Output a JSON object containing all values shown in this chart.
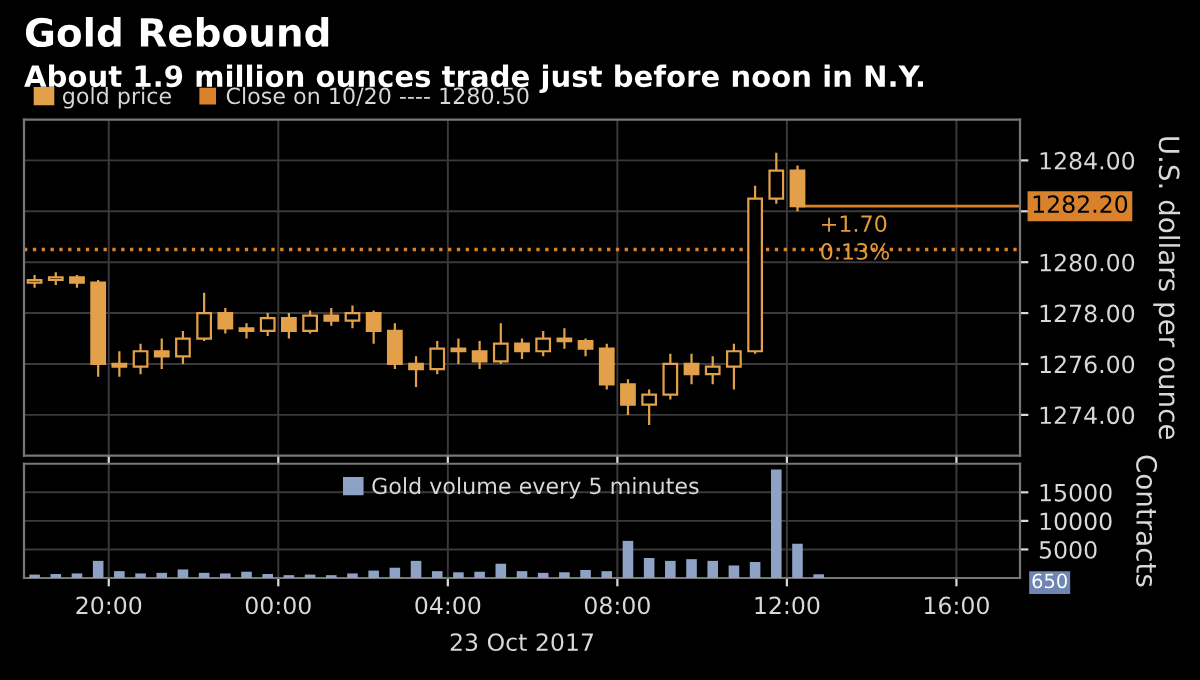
{
  "chart_data": [
    {
      "type": "candlestick",
      "title": "Gold Rebound",
      "subtitle": "About 1.9 million ounces trade just before noon in N.Y.",
      "ylabel": "U.S. dollars per ounce",
      "x": [
        "2017-10-22T18:15",
        "2017-10-22T18:45",
        "2017-10-22T19:15",
        "2017-10-22T19:45",
        "2017-10-22T20:15",
        "2017-10-22T20:45",
        "2017-10-22T21:15",
        "2017-10-22T21:45",
        "2017-10-22T22:15",
        "2017-10-22T22:45",
        "2017-10-22T23:15",
        "2017-10-22T23:45",
        "2017-10-23T00:15",
        "2017-10-23T00:45",
        "2017-10-23T01:15",
        "2017-10-23T01:45",
        "2017-10-23T02:15",
        "2017-10-23T02:45",
        "2017-10-23T03:15",
        "2017-10-23T03:45",
        "2017-10-23T04:15",
        "2017-10-23T04:45",
        "2017-10-23T05:15",
        "2017-10-23T05:45",
        "2017-10-23T06:15",
        "2017-10-23T06:45",
        "2017-10-23T07:15",
        "2017-10-23T07:45",
        "2017-10-23T08:15",
        "2017-10-23T08:45",
        "2017-10-23T09:15",
        "2017-10-23T09:45",
        "2017-10-23T10:15",
        "2017-10-23T10:45",
        "2017-10-23T11:15",
        "2017-10-23T11:45",
        "2017-10-23T12:15"
      ],
      "series": [
        {
          "name": "gold price",
          "color": "#e3a04a",
          "ohlc": [
            [
              1279.2,
              1279.5,
              1279.0,
              1279.3
            ],
            [
              1279.3,
              1279.6,
              1279.1,
              1279.4
            ],
            [
              1279.4,
              1279.5,
              1279.0,
              1279.2
            ],
            [
              1279.2,
              1279.3,
              1275.5,
              1276.0
            ],
            [
              1276.0,
              1276.5,
              1275.5,
              1275.9
            ],
            [
              1275.9,
              1276.8,
              1275.6,
              1276.5
            ],
            [
              1276.5,
              1277.0,
              1275.8,
              1276.3
            ],
            [
              1276.3,
              1277.3,
              1276.0,
              1277.0
            ],
            [
              1277.0,
              1278.8,
              1276.9,
              1278.0
            ],
            [
              1278.0,
              1278.2,
              1277.2,
              1277.4
            ],
            [
              1277.4,
              1277.6,
              1277.0,
              1277.3
            ],
            [
              1277.3,
              1278.0,
              1277.1,
              1277.8
            ],
            [
              1277.8,
              1278.0,
              1277.0,
              1277.3
            ],
            [
              1277.3,
              1278.1,
              1277.2,
              1277.9
            ],
            [
              1277.9,
              1278.2,
              1277.5,
              1277.7
            ],
            [
              1277.7,
              1278.3,
              1277.4,
              1278.0
            ],
            [
              1278.0,
              1278.1,
              1276.8,
              1277.3
            ],
            [
              1277.3,
              1277.6,
              1275.8,
              1276.0
            ],
            [
              1276.0,
              1276.3,
              1275.1,
              1275.8
            ],
            [
              1275.8,
              1276.9,
              1275.6,
              1276.6
            ],
            [
              1276.6,
              1277.0,
              1276.0,
              1276.5
            ],
            [
              1276.5,
              1276.9,
              1275.8,
              1276.1
            ],
            [
              1276.1,
              1277.6,
              1276.0,
              1276.8
            ],
            [
              1276.8,
              1277.0,
              1276.2,
              1276.5
            ],
            [
              1276.5,
              1277.3,
              1276.3,
              1277.0
            ],
            [
              1277.0,
              1277.4,
              1276.6,
              1276.9
            ],
            [
              1276.9,
              1277.0,
              1276.3,
              1276.6
            ],
            [
              1276.6,
              1276.8,
              1275.0,
              1275.2
            ],
            [
              1275.2,
              1275.4,
              1274.0,
              1274.4
            ],
            [
              1274.4,
              1275.0,
              1273.6,
              1274.8
            ],
            [
              1274.8,
              1276.4,
              1274.6,
              1276.0
            ],
            [
              1276.0,
              1276.4,
              1275.2,
              1275.6
            ],
            [
              1275.6,
              1276.3,
              1275.2,
              1275.9
            ],
            [
              1275.9,
              1276.8,
              1275.0,
              1276.5
            ],
            [
              1276.5,
              1283.0,
              1276.4,
              1282.5
            ],
            [
              1282.5,
              1284.3,
              1282.3,
              1283.6
            ],
            [
              1283.6,
              1283.8,
              1282.0,
              1282.2
            ]
          ]
        }
      ],
      "xlim": [
        "2017-10-22T18:00",
        "2017-10-23T17:30"
      ],
      "xticks": [
        {
          "value": "2017-10-22T20:00",
          "label": null
        },
        {
          "value": "2017-10-23T00:00",
          "label": null
        },
        {
          "value": "2017-10-23T04:00",
          "label": null
        },
        {
          "value": "2017-10-23T08:00",
          "label": null
        },
        {
          "value": "2017-10-23T12:00",
          "label": null
        },
        {
          "value": "2017-10-23T16:00",
          "label": null
        }
      ],
      "ylim": [
        1272.4,
        1285.6
      ],
      "yticks": [
        {
          "value": 1274,
          "label": "1274.00"
        },
        {
          "value": 1276,
          "label": "1276.00"
        },
        {
          "value": 1278,
          "label": "1278.00"
        },
        {
          "value": 1280,
          "label": "1280.00"
        },
        {
          "value": 1282,
          "label": null
        },
        {
          "value": 1284,
          "label": "1284.00"
        }
      ],
      "ref_lines": [
        {
          "axis": "y",
          "value": 1280.5,
          "label": "Close on 10/20 ---- 1280.50",
          "color": "#d9822b",
          "line_style": "dotted"
        },
        {
          "axis": "y",
          "value": 1282.2,
          "label": "1282.20",
          "color": "#d9822b",
          "line_style": "solid"
        }
      ],
      "annotations": [
        "+1.70",
        "0.13%"
      ],
      "grid": true,
      "legend": "top left",
      "tick_labels": "y"
    },
    {
      "type": "bar",
      "ylabel": "Contracts",
      "x": [
        "2017-10-22T18:15",
        "2017-10-22T18:45",
        "2017-10-22T19:15",
        "2017-10-22T19:45",
        "2017-10-22T20:15",
        "2017-10-22T20:45",
        "2017-10-22T21:15",
        "2017-10-22T21:45",
        "2017-10-22T22:15",
        "2017-10-22T22:45",
        "2017-10-22T23:15",
        "2017-10-22T23:45",
        "2017-10-23T00:15",
        "2017-10-23T00:45",
        "2017-10-23T01:15",
        "2017-10-23T01:45",
        "2017-10-23T02:15",
        "2017-10-23T02:45",
        "2017-10-23T03:15",
        "2017-10-23T03:45",
        "2017-10-23T04:15",
        "2017-10-23T04:45",
        "2017-10-23T05:15",
        "2017-10-23T05:45",
        "2017-10-23T06:15",
        "2017-10-23T06:45",
        "2017-10-23T07:15",
        "2017-10-23T07:45",
        "2017-10-23T08:15",
        "2017-10-23T08:45",
        "2017-10-23T09:15",
        "2017-10-23T09:45",
        "2017-10-23T10:15",
        "2017-10-23T10:45",
        "2017-10-23T11:15",
        "2017-10-23T11:45",
        "2017-10-23T12:15",
        "2017-10-23T12:45"
      ],
      "series": [
        {
          "name": "Gold volume every 5 minutes",
          "color": "#8ea2c6",
          "values": [
            600,
            700,
            800,
            3000,
            1200,
            800,
            900,
            1500,
            900,
            800,
            1100,
            700,
            500,
            600,
            500,
            800,
            1300,
            1800,
            3000,
            1200,
            1000,
            1100,
            2500,
            1200,
            900,
            1000,
            1400,
            1200,
            6500,
            3500,
            3000,
            3300,
            3000,
            2200,
            2800,
            19000,
            6000,
            650
          ]
        }
      ],
      "xlim": [
        "2017-10-22T18:00",
        "2017-10-23T17:30"
      ],
      "xticks": [
        {
          "value": "2017-10-22T20:00",
          "label": "20:00"
        },
        {
          "value": "2017-10-23T00:00",
          "label": "00:00"
        },
        {
          "value": "2017-10-23T04:00",
          "label": "04:00"
        },
        {
          "value": "2017-10-23T08:00",
          "label": "08:00"
        },
        {
          "value": "2017-10-23T12:00",
          "label": "12:00"
        },
        {
          "value": "2017-10-23T16:00",
          "label": "16:00"
        }
      ],
      "ylim": [
        0,
        20000
      ],
      "yticks": [
        5000,
        10000,
        15000
      ],
      "annotations": [
        "650",
        "23 Oct 2017"
      ],
      "grid": true,
      "legend": "top"
    }
  ]
}
